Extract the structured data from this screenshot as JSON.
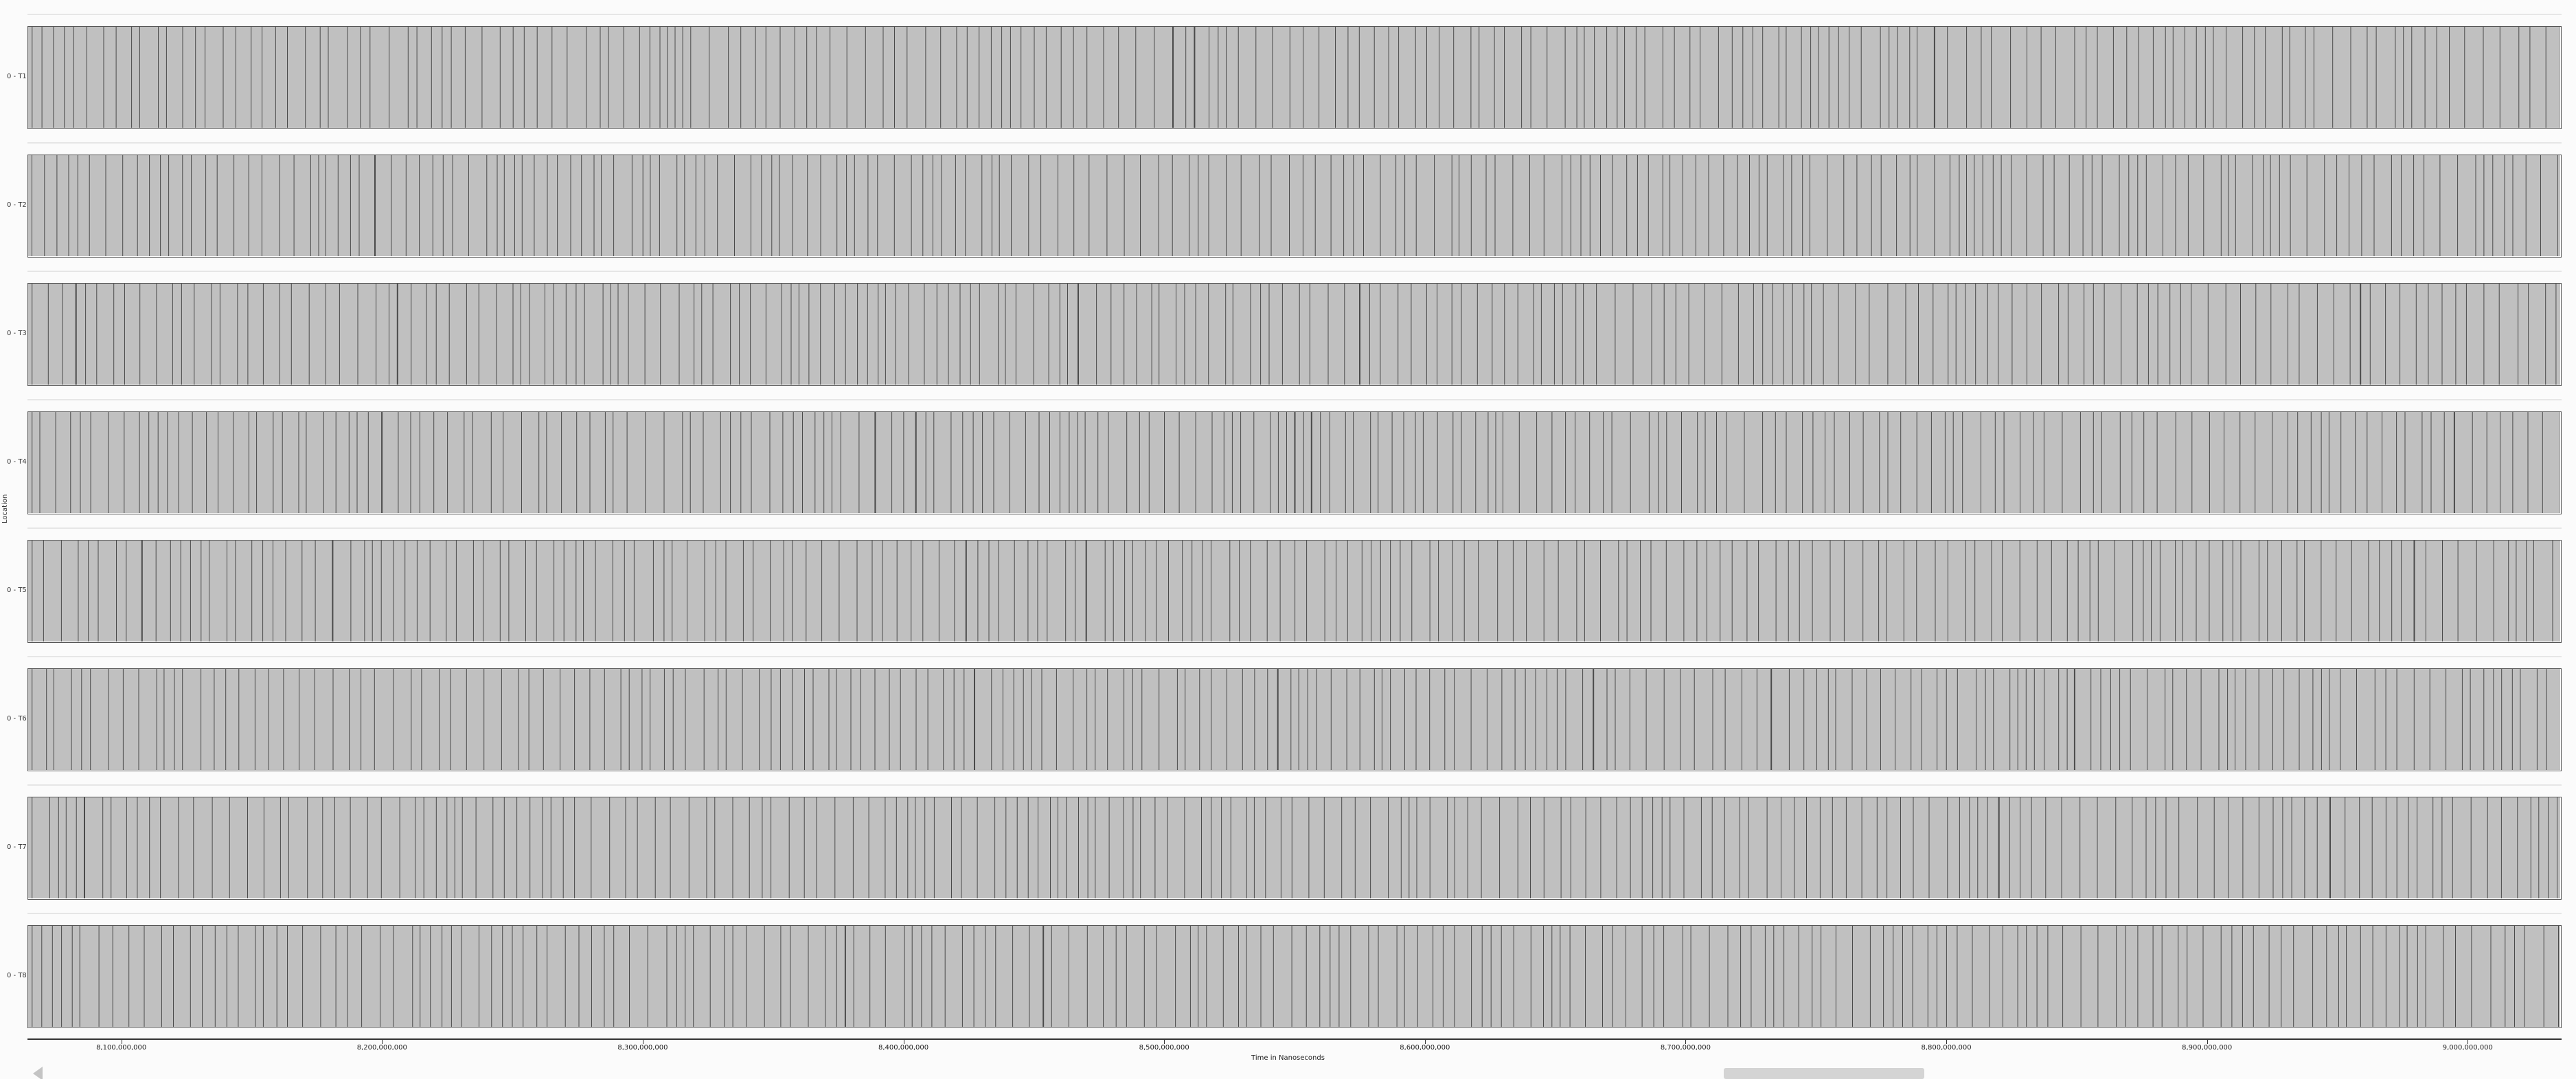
{
  "chart_data": {
    "type": "timeline",
    "xlabel": "Time in Nanoseconds",
    "ylabel": "Location",
    "x_range": [
      8064000000,
      9036000000
    ],
    "x_ticks": [
      {
        "value": 8100000000,
        "label": "8,100,000,000"
      },
      {
        "value": 8200000000,
        "label": "8,200,000,000"
      },
      {
        "value": 8300000000,
        "label": "8,300,000,000"
      },
      {
        "value": 8400000000,
        "label": "8,400,000,000"
      },
      {
        "value": 8500000000,
        "label": "8,500,000,000"
      },
      {
        "value": 8600000000,
        "label": "8,600,000,000"
      },
      {
        "value": 8700000000,
        "label": "8,700,000,000"
      },
      {
        "value": 8800000000,
        "label": "8,800,000,000"
      },
      {
        "value": 8900000000,
        "label": "8,900,000,000"
      },
      {
        "value": 9000000000,
        "label": "9,000,000,000"
      }
    ],
    "locations": [
      {
        "label": "0 - T1",
        "approx_event_count": 190
      },
      {
        "label": "0 - T2",
        "approx_event_count": 200
      },
      {
        "label": "0 - T3",
        "approx_event_count": 195
      },
      {
        "label": "0 - T4",
        "approx_event_count": 195
      },
      {
        "label": "0 - T5",
        "approx_event_count": 190
      },
      {
        "label": "0 - T6",
        "approx_event_count": 195
      },
      {
        "label": "0 - T7",
        "approx_event_count": 195
      },
      {
        "label": "0 - T8",
        "approx_event_count": 190
      }
    ],
    "colors": {
      "fill": "#c0c0c0",
      "event_line": "#4a4a4a",
      "border": "#555555"
    },
    "grid": false
  },
  "scrollbar": {
    "visible_fraction": 0.08,
    "position_fraction": 0.66,
    "left_icon": "triangle-left-icon",
    "right_icon": "triangle-right-icon"
  }
}
